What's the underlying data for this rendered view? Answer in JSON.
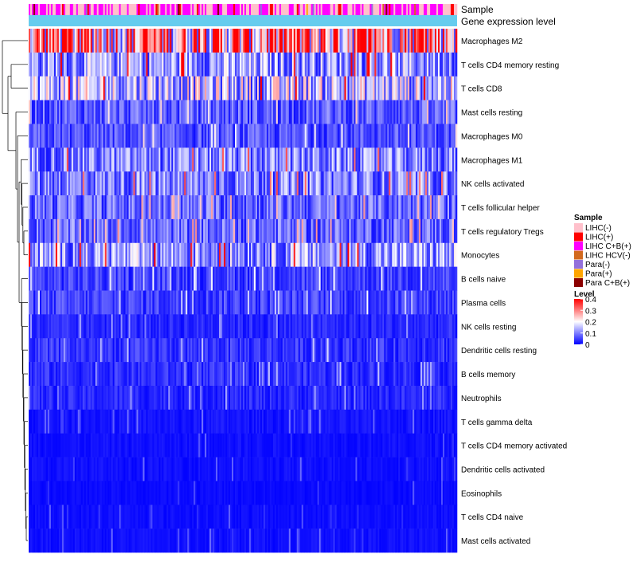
{
  "chart_data": {
    "type": "heatmap",
    "title": "",
    "annotation_tracks": [
      "Sample",
      "Gene expression level"
    ],
    "rows": [
      {
        "name": "Macrophages M2",
        "mean_level": 0.28
      },
      {
        "name": "T cells CD4 memory resting",
        "mean_level": 0.12
      },
      {
        "name": "T cells CD8",
        "mean_level": 0.15
      },
      {
        "name": "Mast cells resting",
        "mean_level": 0.07
      },
      {
        "name": "Macrophages M0",
        "mean_level": 0.06
      },
      {
        "name": "Macrophages M1",
        "mean_level": 0.1
      },
      {
        "name": "NK cells activated",
        "mean_level": 0.1
      },
      {
        "name": "T cells follicular helper",
        "mean_level": 0.08
      },
      {
        "name": "T cells regulatory  Tregs",
        "mean_level": 0.08
      },
      {
        "name": "Monocytes",
        "mean_level": 0.12
      },
      {
        "name": "B cells naive",
        "mean_level": 0.05
      },
      {
        "name": "Plasma cells",
        "mean_level": 0.05
      },
      {
        "name": "NK cells resting",
        "mean_level": 0.03
      },
      {
        "name": "Dendritic cells resting",
        "mean_level": 0.04
      },
      {
        "name": "B cells memory",
        "mean_level": 0.035
      },
      {
        "name": "Neutrophils",
        "mean_level": 0.03
      },
      {
        "name": "T cells gamma delta",
        "mean_level": 0.015
      },
      {
        "name": "T cells CD4 memory activated",
        "mean_level": 0.012
      },
      {
        "name": "Dendritic cells activated",
        "mean_level": 0.012
      },
      {
        "name": "Eosinophils",
        "mean_level": 0.008
      },
      {
        "name": "T cells CD4 naive",
        "mean_level": 0.01
      },
      {
        "name": "Mast cells activated",
        "mean_level": 0.012
      }
    ],
    "n_samples": 270,
    "sample_groups": [
      "LIHC(-)",
      "LIHC(+)",
      "LIHC C+B(+)",
      "LIHC HCV(-)",
      "Para(-)",
      "Para(+)",
      "Para C+B(+)"
    ],
    "color_scale": {
      "min": 0,
      "max": 0.4,
      "ticks": [
        0,
        0.1,
        0.2,
        0.3,
        0.4
      ],
      "tick_labels": [
        "0",
        "0.1",
        "0.2",
        "0.3",
        "0.4"
      ]
    }
  },
  "legend": {
    "sample_title": "Sample",
    "sample_items": [
      {
        "label": "LIHC(-)",
        "color": "#FFC0CB"
      },
      {
        "label": "LIHC(+)",
        "color": "#FF0000"
      },
      {
        "label": "LIHC C+B(+)",
        "color": "#FF00FF"
      },
      {
        "label": "LIHC HCV(-)",
        "color": "#D2691E"
      },
      {
        "label": "Para(-)",
        "color": "#9370DB"
      },
      {
        "label": "Para(+)",
        "color": "#FFA500"
      },
      {
        "label": "Para C+B(+)",
        "color": "#8B0000"
      }
    ],
    "level_title": "Level",
    "level_colors": [
      "#0000FF",
      "#FFFFFF",
      "#FF0000"
    ]
  },
  "expression_track_color": "#66CCEE"
}
